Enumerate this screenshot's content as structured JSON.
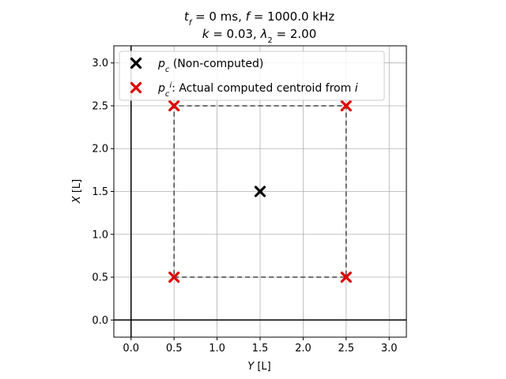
{
  "chart_data": {
    "type": "scatter",
    "title_line1": "t_f = 0 ms, f = 1000.0 kHz",
    "title_line2": "k = 0.03, λ_2 = 2.00",
    "xlabel": "Y [L]",
    "ylabel": "X [L]",
    "xlim": [
      -0.2,
      3.2
    ],
    "ylim": [
      -0.2,
      3.2
    ],
    "xticks": [
      "0.0",
      "0.5",
      "1.0",
      "1.5",
      "2.0",
      "2.5",
      "3.0"
    ],
    "yticks": [
      "0.0",
      "0.5",
      "1.0",
      "1.5",
      "2.0",
      "2.5",
      "3.0"
    ],
    "grid": true,
    "legend_position": "top-left",
    "series": [
      {
        "name": "p_c (Non-computed)",
        "color": "#000000",
        "marker": "x",
        "points": [
          {
            "x": 1.5,
            "y": 1.5
          }
        ]
      },
      {
        "name": "p_c^i: Actual computed centroid from i",
        "color": "#e00000",
        "marker": "x",
        "points": [
          {
            "x": 0.5,
            "y": 2.5
          },
          {
            "x": 2.5,
            "y": 2.5
          },
          {
            "x": 0.5,
            "y": 0.5
          },
          {
            "x": 2.5,
            "y": 0.5
          }
        ]
      }
    ],
    "square_outline": {
      "style": "dashed",
      "color": "#444444",
      "corners": [
        {
          "x": 0.5,
          "y": 0.5
        },
        {
          "x": 2.5,
          "y": 0.5
        },
        {
          "x": 2.5,
          "y": 2.5
        },
        {
          "x": 0.5,
          "y": 2.5
        }
      ]
    },
    "reference_lines": {
      "x0": 0.0,
      "y0": 0.0
    }
  }
}
